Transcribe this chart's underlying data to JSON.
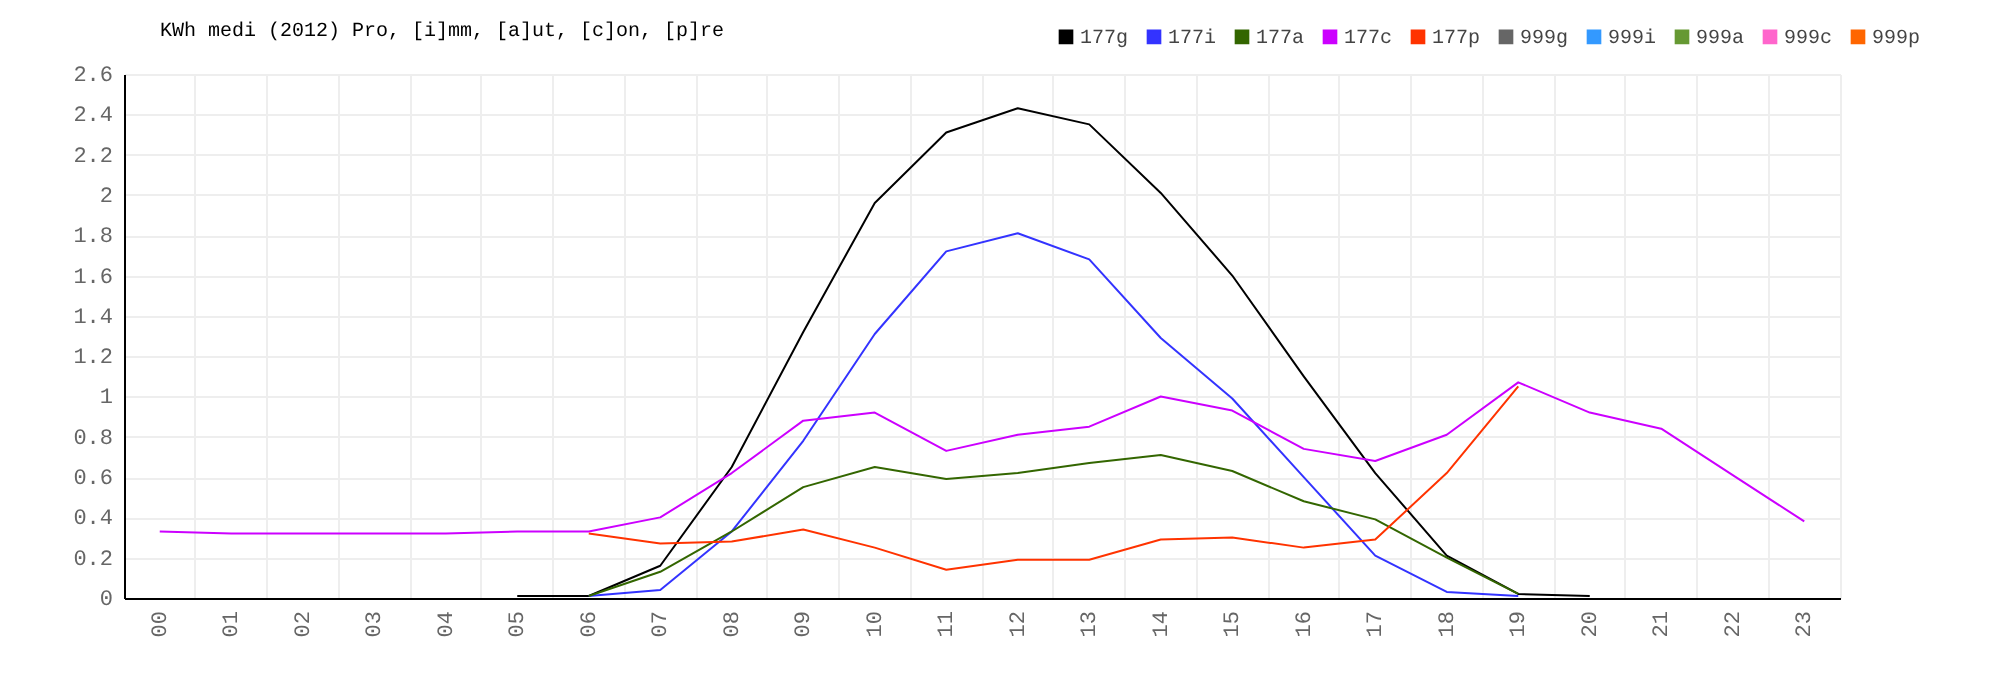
{
  "chart_data": {
    "type": "line",
    "title": "KWh medi (2012) Pro, [i]mm, [a]ut, [c]on, [p]re",
    "categories": [
      "00",
      "01",
      "02",
      "03",
      "04",
      "05",
      "06",
      "07",
      "08",
      "09",
      "10",
      "11",
      "12",
      "13",
      "14",
      "15",
      "16",
      "17",
      "18",
      "19",
      "20",
      "21",
      "22",
      "23"
    ],
    "ylim": [
      0,
      2.6
    ],
    "yticks": [
      {
        "value": 0,
        "label": "0"
      },
      0.2,
      0.4,
      0.6,
      0.8,
      {
        "value": 1,
        "label": "1"
      },
      1.2,
      1.4,
      1.6,
      1.8,
      {
        "value": 2,
        "label": "2"
      },
      2.2,
      2.4,
      2.6
    ],
    "grid": true,
    "legend": "top right",
    "marker": "none",
    "line_style": "solid",
    "series": [
      {
        "name": "177g",
        "color": "#000000",
        "values": [
          null,
          null,
          null,
          null,
          null,
          0.01,
          0.01,
          0.16,
          0.65,
          1.32,
          1.96,
          2.31,
          2.43,
          2.35,
          2.01,
          1.6,
          1.1,
          0.62,
          0.21,
          0.02,
          0.01,
          null,
          null,
          null
        ]
      },
      {
        "name": "177i",
        "color": "#3333ff",
        "values": [
          null,
          null,
          null,
          null,
          null,
          null,
          0.01,
          0.04,
          0.33,
          0.78,
          1.31,
          1.72,
          1.81,
          1.68,
          1.29,
          0.99,
          0.6,
          0.21,
          0.03,
          0.01,
          null,
          null,
          null,
          null
        ]
      },
      {
        "name": "177a",
        "color": "#336600",
        "values": [
          null,
          null,
          null,
          null,
          null,
          null,
          0.01,
          0.13,
          0.33,
          0.55,
          0.65,
          0.59,
          0.62,
          0.67,
          0.71,
          0.63,
          0.48,
          0.39,
          0.2,
          0.02,
          null,
          null,
          null,
          null
        ]
      },
      {
        "name": "177c",
        "color": "#cc00ff",
        "values": [
          0.33,
          0.32,
          0.32,
          0.32,
          0.32,
          0.33,
          0.33,
          0.4,
          0.62,
          0.88,
          0.92,
          0.73,
          0.81,
          0.85,
          1.0,
          0.93,
          0.74,
          0.68,
          0.81,
          1.07,
          0.92,
          0.84,
          0.61,
          0.38
        ]
      },
      {
        "name": "177p",
        "color": "#ff3300",
        "values": [
          null,
          null,
          null,
          null,
          null,
          null,
          0.32,
          0.27,
          0.28,
          0.34,
          0.25,
          0.14,
          0.19,
          0.19,
          0.29,
          0.3,
          0.25,
          0.29,
          0.62,
          1.05,
          null,
          null,
          null,
          null
        ]
      },
      {
        "name": "999g",
        "color": "#666666",
        "values": [
          null,
          null,
          null,
          null,
          null,
          null,
          null,
          null,
          null,
          null,
          null,
          null,
          null,
          null,
          null,
          null,
          null,
          null,
          null,
          null,
          null,
          null,
          null,
          null
        ]
      },
      {
        "name": "999i",
        "color": "#3399ff",
        "values": [
          null,
          null,
          null,
          null,
          null,
          null,
          null,
          null,
          null,
          null,
          null,
          null,
          null,
          null,
          null,
          null,
          null,
          null,
          null,
          null,
          null,
          null,
          null,
          null
        ]
      },
      {
        "name": "999a",
        "color": "#669933",
        "values": [
          null,
          null,
          null,
          null,
          null,
          null,
          null,
          null,
          null,
          null,
          null,
          null,
          null,
          null,
          null,
          null,
          null,
          null,
          null,
          null,
          null,
          null,
          null,
          null
        ]
      },
      {
        "name": "999c",
        "color": "#ff66cc",
        "values": [
          null,
          null,
          null,
          null,
          null,
          null,
          null,
          null,
          null,
          null,
          null,
          null,
          null,
          null,
          null,
          null,
          null,
          null,
          null,
          null,
          null,
          null,
          null,
          null
        ]
      },
      {
        "name": "999p",
        "color": "#ff6600",
        "values": [
          null,
          null,
          null,
          null,
          null,
          null,
          null,
          null,
          null,
          null,
          null,
          null,
          null,
          null,
          null,
          null,
          null,
          null,
          null,
          null,
          null,
          null,
          null,
          null
        ]
      }
    ]
  }
}
